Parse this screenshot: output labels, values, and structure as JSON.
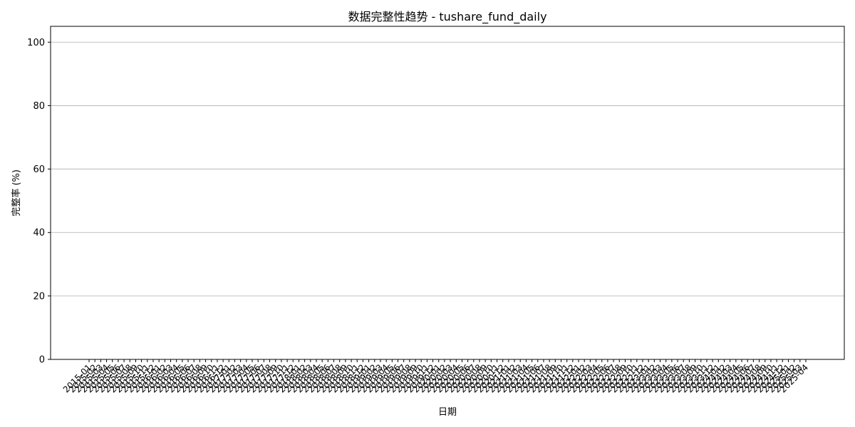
{
  "chart_data": {
    "type": "bar",
    "title": "数据完整性趋势 - tushare_fund_daily",
    "xlabel": "日期",
    "ylabel": "完整率 (%)",
    "ylim": [
      0,
      105
    ],
    "yticks": [
      0,
      20,
      40,
      60,
      80,
      100
    ],
    "grid": "y",
    "categories": [
      "2015-01",
      "2015-02",
      "2015-03",
      "2015-04",
      "2015-05",
      "2015-06",
      "2015-07",
      "2015-08",
      "2015-09",
      "2015-10",
      "2015-11",
      "2015-12",
      "2016-01",
      "2016-02",
      "2016-03",
      "2016-04",
      "2016-05",
      "2016-06",
      "2016-07",
      "2016-08",
      "2016-09",
      "2016-10",
      "2016-11",
      "2016-12",
      "2017-01",
      "2017-02",
      "2017-03",
      "2017-04",
      "2017-05",
      "2017-06",
      "2017-07",
      "2017-08",
      "2017-09",
      "2017-10",
      "2017-11",
      "2017-12",
      "2018-01",
      "2018-02",
      "2018-03",
      "2018-04",
      "2018-05",
      "2018-06",
      "2018-07",
      "2018-08",
      "2018-09",
      "2018-10",
      "2018-11",
      "2018-12",
      "2019-01",
      "2019-02",
      "2019-03",
      "2019-04",
      "2019-05",
      "2019-06",
      "2019-07",
      "2019-08",
      "2019-09",
      "2019-10",
      "2019-11",
      "2019-12",
      "2020-01",
      "2020-02",
      "2020-03",
      "2020-04",
      "2020-05",
      "2020-06",
      "2020-07",
      "2020-08",
      "2020-09",
      "2020-10",
      "2020-11",
      "2020-12",
      "2021-01",
      "2021-02",
      "2021-03",
      "2021-04",
      "2021-05",
      "2021-06",
      "2021-07",
      "2021-08",
      "2021-09",
      "2021-10",
      "2021-11",
      "2021-12",
      "2022-01",
      "2022-02",
      "2022-03",
      "2022-04",
      "2022-05",
      "2022-06",
      "2022-07",
      "2022-08",
      "2022-09",
      "2022-10",
      "2022-11",
      "2022-12",
      "2023-01",
      "2023-02",
      "2023-03",
      "2023-04",
      "2023-05",
      "2023-06",
      "2023-07",
      "2023-08",
      "2023-09",
      "2023-10",
      "2023-11",
      "2023-12",
      "2024-01",
      "2024-02",
      "2024-03",
      "2024-04",
      "2024-05",
      "2024-06",
      "2024-07",
      "2024-08",
      "2024-09",
      "2024-10",
      "2024-11",
      "2024-12",
      "2025-01",
      "2025-02",
      "2025-03",
      "2025-04"
    ],
    "values": [
      0,
      0,
      0,
      0,
      0,
      0,
      0,
      0,
      0,
      0,
      0,
      0,
      0,
      0,
      0,
      0,
      0,
      0,
      0,
      0,
      0,
      0,
      0,
      0,
      0,
      0,
      0,
      0,
      0,
      0,
      0,
      0,
      0,
      0,
      0,
      0,
      0,
      0,
      0,
      0,
      0,
      0,
      0,
      0,
      0,
      0,
      0,
      0,
      0,
      0,
      0,
      0,
      0,
      0,
      0,
      0,
      0,
      0,
      0,
      0,
      0,
      0,
      0,
      0,
      0,
      0,
      0,
      0,
      0,
      0,
      0,
      0,
      0,
      0,
      0,
      0,
      0,
      0,
      0,
      0,
      0,
      0,
      0,
      0,
      0,
      0,
      0,
      0,
      0,
      0,
      0,
      0,
      0,
      0,
      0,
      0,
      0,
      0,
      0,
      0,
      0,
      0,
      0,
      0,
      0,
      0,
      0,
      0,
      0,
      0,
      0,
      0,
      0,
      0,
      0,
      0,
      0,
      0,
      0,
      0,
      0,
      0,
      0,
      0
    ],
    "bar_color": "#1f77b4",
    "grid_color": "#b0b0b0"
  }
}
